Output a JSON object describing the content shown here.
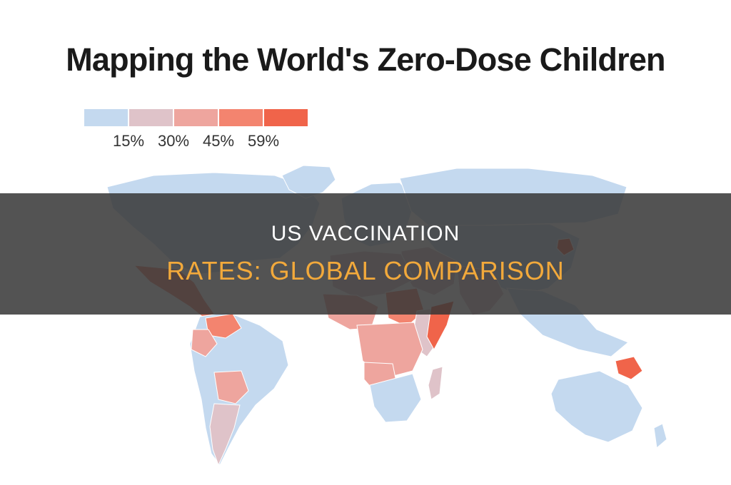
{
  "map": {
    "title": "Mapping the World's Zero-Dose Children",
    "legend": {
      "labels": [
        "15%",
        "30%",
        "45%",
        "59%"
      ],
      "colors": [
        "#c4d9ef",
        "#dfc3c9",
        "#eea59e",
        "#f3846f",
        "#f0644a"
      ]
    },
    "regions": [
      {
        "name": "north-america",
        "bucket": 0
      },
      {
        "name": "greenland",
        "bucket": 0
      },
      {
        "name": "central-america",
        "bucket": 3
      },
      {
        "name": "south-america",
        "bucket": 0
      },
      {
        "name": "venezuela",
        "bucket": 3
      },
      {
        "name": "colombia",
        "bucket": 2
      },
      {
        "name": "bolivia-paraguay",
        "bucket": 2
      },
      {
        "name": "argentina",
        "bucket": 1
      },
      {
        "name": "europe",
        "bucket": 0
      },
      {
        "name": "russia",
        "bucket": 0
      },
      {
        "name": "asia",
        "bucket": 0
      },
      {
        "name": "north-korea",
        "bucket": 4
      },
      {
        "name": "middle-east",
        "bucket": 1
      },
      {
        "name": "north-africa",
        "bucket": 1
      },
      {
        "name": "west-africa",
        "bucket": 2
      },
      {
        "name": "central-africa",
        "bucket": 2
      },
      {
        "name": "east-africa",
        "bucket": 1
      },
      {
        "name": "somalia",
        "bucket": 4
      },
      {
        "name": "sudan",
        "bucket": 3
      },
      {
        "name": "southern-africa",
        "bucket": 0
      },
      {
        "name": "angola",
        "bucket": 2
      },
      {
        "name": "madagascar",
        "bucket": 1
      },
      {
        "name": "south-asia",
        "bucket": 1
      },
      {
        "name": "southeast-asia",
        "bucket": 0
      },
      {
        "name": "papua-new-guinea",
        "bucket": 4
      },
      {
        "name": "australia",
        "bucket": 0
      },
      {
        "name": "new-zealand",
        "bucket": 0
      }
    ]
  },
  "banner": {
    "line1": "US VACCINATION",
    "line2": "RATES: GLOBAL COMPARISON"
  }
}
